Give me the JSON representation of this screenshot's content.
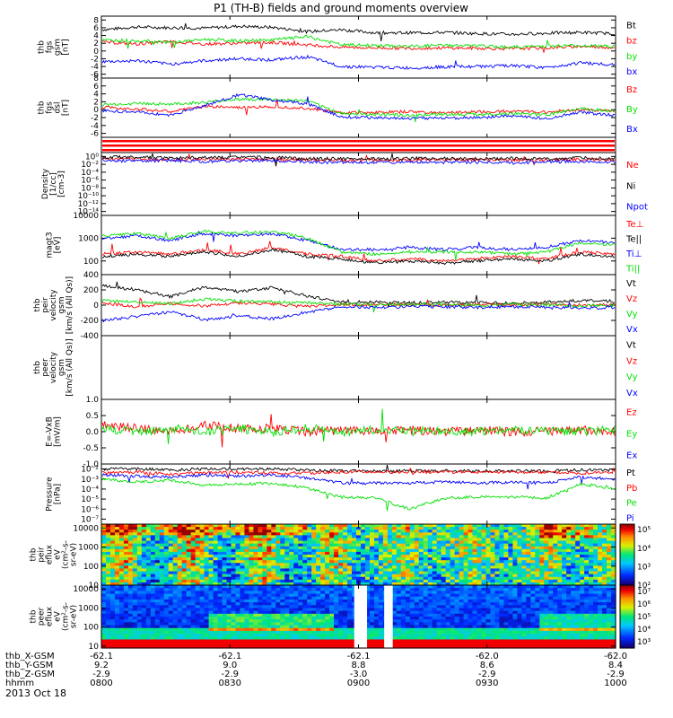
{
  "title": "P1 (TH-B) fields and ground moments overview",
  "date_label": "2013 Oct 18",
  "colors": {
    "black": "#000000",
    "red": "#ff0000",
    "green": "#00e000",
    "blue": "#0000ff"
  },
  "orbit": {
    "row_labels": [
      "thb_X-GSM",
      "thb_Y-GSM",
      "thb_Z-GSM",
      "hhmm"
    ],
    "columns": [
      [
        "-62.1",
        "9.2",
        "-2.9",
        "0800"
      ],
      [
        "-62.1",
        "9.0",
        "-2.9",
        "0830"
      ],
      [
        "-62.1",
        "8.8",
        "-3.0",
        "0900"
      ],
      [
        "-62.0",
        "8.6",
        "-2.9",
        "0930"
      ],
      [
        "-62.0",
        "8.4",
        "-2.9",
        "1000"
      ]
    ]
  },
  "chart_data": [
    {
      "type": "line",
      "id": "fgs",
      "ylabel": [
        "thb",
        "fgs",
        "gsm",
        "[nT]"
      ],
      "ylim": [
        -7,
        9
      ],
      "ticks": [
        "-6",
        "-4",
        "-2",
        "0",
        "2",
        "4",
        "6",
        "8"
      ],
      "tick_values": [
        -6,
        -4,
        -2,
        0,
        2,
        4,
        6,
        8
      ],
      "series": [
        {
          "name": "Bt",
          "color": "#000000",
          "values": [
            5.5,
            6.2,
            6.0,
            5.9,
            6.4,
            6.1,
            5.0,
            5.5,
            4.7,
            4.7,
            4.8,
            4.5,
            4.3,
            4.6,
            4.8,
            4.5
          ]
        },
        {
          "name": "bz",
          "color": "#ff0000",
          "values": [
            2.3,
            1.8,
            2.4,
            1.8,
            2.0,
            2.2,
            1.6,
            1.0,
            0.8,
            0.7,
            0.8,
            0.7,
            0.6,
            0.8,
            1.2,
            0.9
          ]
        },
        {
          "name": "by",
          "color": "#00e000",
          "values": [
            2.8,
            2.7,
            2.2,
            3.0,
            2.6,
            2.9,
            3.7,
            1.6,
            1.4,
            1.2,
            1.5,
            1.3,
            1.0,
            1.3,
            1.4,
            1.2
          ]
        },
        {
          "name": "bx",
          "color": "#0000ff",
          "values": [
            -2.8,
            -2.5,
            -3.4,
            -2.5,
            -2.0,
            -2.3,
            -1.5,
            -4.0,
            -4.2,
            -4.4,
            -4.1,
            -4.0,
            -3.8,
            -4.3,
            -3.0,
            -3.6
          ]
        }
      ]
    },
    {
      "type": "line",
      "id": "fgs-dsl",
      "ylabel": [
        "thb",
        "fgs",
        "dsl",
        "[nT]"
      ],
      "ylim": [
        -7,
        8
      ],
      "ticks": [
        "-6",
        "-4",
        "-2",
        "0",
        "2",
        "4",
        "6",
        "8"
      ],
      "tick_values": [
        -6,
        -4,
        -2,
        0,
        2,
        4,
        6,
        8
      ],
      "series": [
        {
          "name": "Bz",
          "color": "#ff0000",
          "values": [
            0.6,
            0.2,
            -0.5,
            0.9,
            0.5,
            0.8,
            0.4,
            -0.8,
            -0.7,
            -0.5,
            -0.8,
            -0.6,
            -0.4,
            -0.6,
            0.0,
            -0.3
          ]
        },
        {
          "name": "By",
          "color": "#00e000",
          "values": [
            1.2,
            1.6,
            1.4,
            1.8,
            2.7,
            2.5,
            2.2,
            -1.0,
            -1.2,
            -1.4,
            -1.1,
            -1.2,
            -1.0,
            -1.3,
            0.4,
            -0.4
          ]
        },
        {
          "name": "Bx",
          "color": "#0000ff",
          "values": [
            -0.3,
            -0.6,
            -1.4,
            1.0,
            3.8,
            2.4,
            1.5,
            -1.8,
            -2.0,
            -2.2,
            -2.1,
            -2.0,
            -1.6,
            -2.2,
            -0.6,
            -1.5
          ]
        }
      ]
    },
    {
      "type": "line",
      "id": "density",
      "ylog": true,
      "ylabel": [
        "Density",
        "[1/cc]",
        "[cm-3]"
      ],
      "ylim": [
        -15,
        1
      ],
      "ticks": [
        "10⁰",
        "10⁻²",
        "10⁻⁴",
        "10⁻⁶",
        "10⁻⁸",
        "10⁻¹⁰",
        "10⁻¹²",
        "10⁻¹⁴"
      ],
      "tick_values": [
        0,
        -2,
        -4,
        -6,
        -8,
        -10,
        -12,
        -14
      ],
      "series": [
        {
          "name": "Ne",
          "color": "#ff0000",
          "values": [
            -0.5,
            -0.6,
            -0.8,
            -0.6,
            -0.7,
            -0.6,
            -0.8,
            -1.0,
            -0.9,
            -0.9,
            -0.8,
            -0.8,
            -0.9,
            -0.8,
            -0.7,
            -0.8
          ]
        },
        {
          "name": "Ni",
          "color": "#000000",
          "values": [
            -0.2,
            -0.1,
            -0.4,
            -0.3,
            -0.2,
            -0.3,
            -0.5,
            -0.6,
            -0.6,
            -0.5,
            -0.5,
            -0.6,
            -0.5,
            -0.6,
            -0.4,
            -0.5
          ]
        },
        {
          "name": "Npot",
          "color": "#0000ff",
          "values": [
            -0.9,
            -1.2,
            -1.0,
            -1.3,
            -1.1,
            -1.0,
            -1.4,
            -1.5,
            -1.6,
            -1.4,
            -1.5,
            -1.4,
            -1.6,
            -1.4,
            -1.2,
            -1.5
          ]
        }
      ]
    },
    {
      "type": "line",
      "id": "temperature",
      "ylog": true,
      "ylabel": [
        "magt3",
        "[eV]"
      ],
      "ylim": [
        1.4,
        4.0
      ],
      "ticks": [
        "100",
        "1000",
        "10000"
      ],
      "tick_values": [
        2,
        3,
        4
      ],
      "series": [
        {
          "name": "Te⊥",
          "color": "#ff0000",
          "values": [
            2.3,
            2.4,
            2.3,
            2.5,
            2.3,
            2.6,
            2.3,
            2.2,
            2.0,
            2.1,
            2.0,
            2.1,
            2.2,
            2.1,
            2.4,
            2.3
          ]
        },
        {
          "name": "Te||",
          "color": "#000000",
          "values": [
            2.2,
            2.3,
            2.2,
            2.4,
            2.2,
            2.5,
            2.2,
            2.1,
            1.9,
            2.0,
            1.9,
            2.0,
            2.1,
            2.0,
            2.3,
            2.2
          ]
        },
        {
          "name": "Ti⊥",
          "color": "#0000ff",
          "values": [
            3.0,
            3.1,
            2.9,
            3.2,
            3.1,
            3.2,
            2.9,
            2.5,
            2.5,
            2.6,
            2.5,
            2.6,
            2.5,
            2.6,
            2.9,
            2.8
          ]
        },
        {
          "name": "Ti||",
          "color": "#00e000",
          "values": [
            3.1,
            3.2,
            3.0,
            3.3,
            3.2,
            3.3,
            3.0,
            2.4,
            2.3,
            2.4,
            2.4,
            2.4,
            2.3,
            2.4,
            2.8,
            2.7
          ]
        }
      ]
    },
    {
      "type": "line",
      "id": "peir-velocity",
      "ylabel": [
        "thb",
        "peir",
        "velocity",
        "gsm",
        "[km/s (All Qs)]"
      ],
      "ylim": [
        -400,
        400
      ],
      "ticks": [
        "400",
        "200",
        "0",
        "-200",
        "-400"
      ],
      "tick_values": [
        400,
        200,
        0,
        -200,
        -400
      ],
      "series": [
        {
          "name": "Vt",
          "color": "#000000",
          "values": [
            260,
            200,
            110,
            240,
            180,
            230,
            120,
            40,
            40,
            30,
            40,
            30,
            30,
            40,
            60,
            50
          ]
        },
        {
          "name": "Vz",
          "color": "#ff0000",
          "values": [
            30,
            -20,
            20,
            -10,
            30,
            10,
            -20,
            10,
            5,
            10,
            0,
            10,
            5,
            10,
            0,
            5
          ]
        },
        {
          "name": "Vy",
          "color": "#00e000",
          "values": [
            60,
            40,
            20,
            80,
            50,
            40,
            30,
            10,
            0,
            10,
            5,
            0,
            10,
            5,
            -10,
            0
          ]
        },
        {
          "name": "Vx",
          "color": "#0000ff",
          "values": [
            -200,
            -150,
            -90,
            -190,
            -140,
            -180,
            -90,
            -20,
            -30,
            -20,
            -20,
            -30,
            -20,
            -30,
            -40,
            -30
          ]
        }
      ]
    },
    {
      "type": "line",
      "id": "peer-velocity",
      "ylabel": [
        "thb",
        "peer",
        "velocity",
        "gsm",
        "[km/s (All Qs)]"
      ],
      "series": [
        {
          "name": "Vt",
          "color": "#000000",
          "values": []
        },
        {
          "name": "Vz",
          "color": "#ff0000",
          "values": []
        },
        {
          "name": "Vy",
          "color": "#00e000",
          "values": []
        },
        {
          "name": "Vx",
          "color": "#0000ff",
          "values": []
        }
      ]
    },
    {
      "type": "line",
      "id": "efield",
      "ylabel": [
        "E=-VxB",
        "[mV/m]"
      ],
      "ylim": [
        -1.0,
        1.0
      ],
      "ticks": [
        "1.0",
        "0.5",
        "0.0",
        "-0.5",
        "-1.0"
      ],
      "tick_values": [
        1.0,
        0.5,
        0.0,
        -0.5,
        -1.0
      ],
      "series": [
        {
          "name": "Ez",
          "color": "#ff0000",
          "values": [
            0.2,
            0.1,
            0.0,
            0.2,
            0.1,
            0.1,
            0.0,
            0.05,
            0.0,
            0.05,
            0.0,
            0.05,
            0.0,
            0.0,
            0.05,
            0.0
          ]
        },
        {
          "name": "Ey",
          "color": "#00e000",
          "values": [
            0.1,
            0.0,
            0.1,
            0.0,
            0.1,
            0.0,
            0.1,
            0.0,
            0.05,
            0.0,
            0.05,
            0.0,
            0.05,
            0.0,
            0.0,
            0.05
          ]
        },
        {
          "name": "Ex",
          "color": "#0000ff",
          "values": []
        }
      ]
    },
    {
      "type": "line",
      "id": "pressure",
      "ylog": true,
      "ylabel": [
        "Pressure",
        "[nPa]"
      ],
      "ylim": [
        -7.5,
        -1.5
      ],
      "ticks": [
        "10⁻²",
        "10⁻³",
        "10⁻⁴",
        "10⁻⁵",
        "10⁻⁶",
        "10⁻⁷"
      ],
      "tick_values": [
        -2,
        -3,
        -4,
        -5,
        -6,
        -7
      ],
      "series": [
        {
          "name": "Pt",
          "color": "#000000",
          "values": [
            -2.0,
            -2.0,
            -2.1,
            -2.0,
            -2.0,
            -2.0,
            -2.1,
            -2.2,
            -2.2,
            -2.2,
            -2.2,
            -2.2,
            -2.2,
            -2.2,
            -2.1,
            -2.1
          ]
        },
        {
          "name": "Pb",
          "color": "#ff0000",
          "values": [
            -2.4,
            -2.3,
            -2.5,
            -2.4,
            -2.3,
            -2.4,
            -2.4,
            -2.3,
            -2.3,
            -2.3,
            -2.3,
            -2.3,
            -2.3,
            -2.3,
            -2.4,
            -2.3
          ]
        },
        {
          "name": "Pe",
          "color": "#00e000",
          "values": [
            -3.0,
            -3.3,
            -3.1,
            -3.6,
            -3.5,
            -3.4,
            -3.9,
            -4.8,
            -4.9,
            -6.0,
            -4.9,
            -4.8,
            -4.8,
            -4.9,
            -3.5,
            -3.9
          ]
        },
        {
          "name": "Pi",
          "color": "#0000ff",
          "values": [
            -2.6,
            -2.7,
            -2.8,
            -2.6,
            -2.7,
            -2.6,
            -2.9,
            -3.4,
            -3.4,
            -3.4,
            -3.3,
            -3.4,
            -3.3,
            -3.4,
            -2.8,
            -3.0
          ]
        }
      ]
    },
    {
      "type": "heatmap",
      "id": "peir-eflux",
      "ylog": true,
      "ylabel": [
        "thb",
        "peir",
        "eflux",
        "eV",
        "(cm²-s-",
        "sr-eV)"
      ],
      "ylim": [
        1,
        4.2
      ],
      "ticks": [
        "10000",
        "1000",
        "100",
        "10"
      ],
      "tick_values": [
        4,
        3,
        2,
        1
      ],
      "colorbar": {
        "ticks": [
          "10⁵",
          "10⁴",
          "10³",
          "10²"
        ],
        "range": [
          2,
          5.3
        ]
      }
    },
    {
      "type": "heatmap",
      "id": "peer-eflux",
      "ylog": true,
      "ylabel": [
        "thb",
        "peer",
        "eflux",
        "eV",
        "(cm²-s-",
        "sr-eV)"
      ],
      "ylim": [
        0.9,
        4.2
      ],
      "ticks": [
        "10000",
        "1000",
        "100",
        "10"
      ],
      "tick_values": [
        4,
        3,
        2,
        1
      ],
      "colorbar": {
        "ticks": [
          "10⁷",
          "10⁶",
          "10⁵",
          "10⁴",
          "10³"
        ],
        "range": [
          2.5,
          7.5
        ]
      },
      "data_gaps_hhmm": [
        [
          "0859",
          "0902"
        ],
        [
          "0906",
          "0908"
        ]
      ]
    }
  ]
}
